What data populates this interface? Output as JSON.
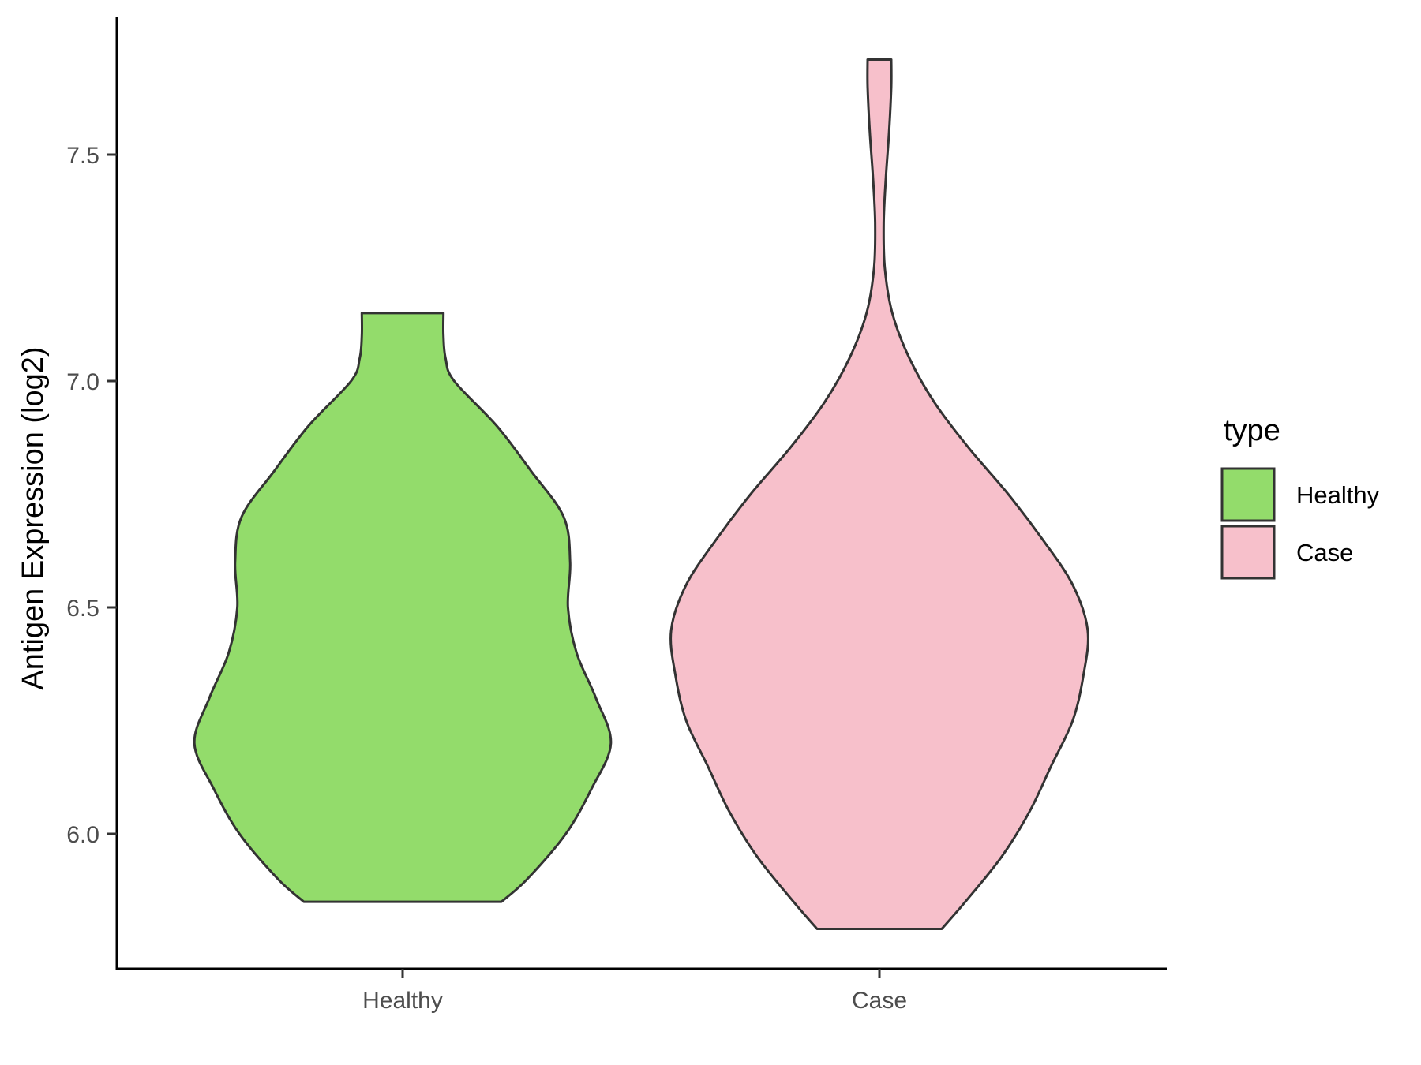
{
  "chart_data": {
    "type": "violin",
    "categories": [
      "Healthy",
      "Case"
    ],
    "xlabel": "",
    "ylabel": "Antigen Expression (log2)",
    "ylim": [
      5.7,
      7.8
    ],
    "yticks": [
      6.0,
      6.5,
      7.0,
      7.5
    ],
    "ytick_labels": [
      "6.0",
      "6.5",
      "7.0",
      "7.5"
    ],
    "grid": false,
    "legend": {
      "title": "type",
      "placement": "right",
      "entries": [
        {
          "label": "Healthy",
          "color": "#93dc6b"
        },
        {
          "label": "Case",
          "color": "#f7c0cb"
        }
      ]
    },
    "series": [
      {
        "category": "Healthy",
        "color": "#93dc6b",
        "min": 5.85,
        "max": 7.15,
        "density_profile": [
          [
            5.85,
            0.46
          ],
          [
            5.9,
            0.58
          ],
          [
            6.0,
            0.76
          ],
          [
            6.1,
            0.88
          ],
          [
            6.2,
            0.97
          ],
          [
            6.3,
            0.9
          ],
          [
            6.4,
            0.81
          ],
          [
            6.5,
            0.77
          ],
          [
            6.6,
            0.78
          ],
          [
            6.7,
            0.75
          ],
          [
            6.8,
            0.6
          ],
          [
            6.9,
            0.44
          ],
          [
            7.0,
            0.24
          ],
          [
            7.05,
            0.2
          ],
          [
            7.1,
            0.19
          ],
          [
            7.15,
            0.19
          ]
        ]
      },
      {
        "category": "Case",
        "color": "#f7c0cb",
        "min": 5.79,
        "max": 7.71,
        "density_profile": [
          [
            5.79,
            0.29
          ],
          [
            5.85,
            0.4
          ],
          [
            5.95,
            0.57
          ],
          [
            6.05,
            0.7
          ],
          [
            6.15,
            0.8
          ],
          [
            6.25,
            0.9
          ],
          [
            6.35,
            0.95
          ],
          [
            6.45,
            0.97
          ],
          [
            6.55,
            0.9
          ],
          [
            6.65,
            0.76
          ],
          [
            6.75,
            0.6
          ],
          [
            6.85,
            0.42
          ],
          [
            6.95,
            0.26
          ],
          [
            7.05,
            0.14
          ],
          [
            7.15,
            0.06
          ],
          [
            7.25,
            0.025
          ],
          [
            7.35,
            0.02
          ],
          [
            7.45,
            0.03
          ],
          [
            7.55,
            0.045
          ],
          [
            7.65,
            0.055
          ],
          [
            7.71,
            0.055
          ]
        ]
      }
    ]
  }
}
